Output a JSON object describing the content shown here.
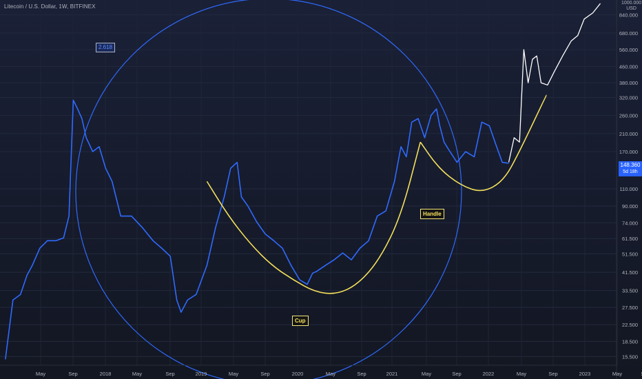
{
  "header": {
    "symbol_line": "Litecoin / U.S. Dollar, 1W, BITFINEX"
  },
  "axis": {
    "currency_top": "1000.000",
    "currency": "USD"
  },
  "price_tag": {
    "price": "148.360",
    "countdown": "5d 18h"
  },
  "annotations": {
    "fib": "2.618",
    "cup": "Cup",
    "handle": "Handle"
  },
  "colors": {
    "background": "#131722",
    "price_line": "#2f6bff",
    "projection_line": "#ffffff",
    "pattern_curve": "#f5e15c",
    "fib_circle": "#2f6bff",
    "label_text": "#b2b5be"
  },
  "chart_data": {
    "type": "line",
    "title": "Litecoin / U.S. Dollar, 1W, BITFINEX",
    "y_scale": "log",
    "ylim": [
      14,
      1000
    ],
    "y_ticks": [
      "15.500",
      "18.500",
      "22.500",
      "27.500",
      "33.500",
      "41.500",
      "51.500",
      "61.500",
      "74.000",
      "90.000",
      "110.000",
      "170.000",
      "210.000",
      "260.000",
      "320.000",
      "380.000",
      "460.000",
      "560.000",
      "680.000",
      "840.000"
    ],
    "x_ticks": [
      "May",
      "Sep",
      "2018",
      "May",
      "Sep",
      "2019",
      "May",
      "Sep",
      "2020",
      "May",
      "Sep",
      "2021",
      "May",
      "Sep",
      "2022",
      "May",
      "Sep",
      "2023",
      "May",
      "Se"
    ],
    "grid": true,
    "series": [
      {
        "style": "price",
        "x": [
          2017.33,
          2017.4,
          2017.47,
          2017.53,
          2017.58,
          2017.65,
          2017.72,
          2017.8,
          2017.87,
          2017.92,
          2017.96,
          2018.0,
          2018.04,
          2018.08,
          2018.14,
          2018.2,
          2018.26,
          2018.32,
          2018.4,
          2018.5,
          2018.6,
          2018.7,
          2018.78,
          2018.86,
          2018.92,
          2018.96,
          2019.02,
          2019.1,
          2019.2,
          2019.28,
          2019.36,
          2019.42,
          2019.48,
          2019.52,
          2019.58,
          2019.66,
          2019.74,
          2019.82,
          2019.9,
          2019.98,
          2020.06,
          2020.13,
          2020.18,
          2020.22,
          2020.3,
          2020.38,
          2020.46,
          2020.54,
          2020.62,
          2020.7,
          2020.78,
          2020.86,
          2020.94,
          2021.0,
          2021.05,
          2021.1,
          2021.16,
          2021.22,
          2021.28,
          2021.33,
          2021.36,
          2021.4,
          2021.44,
          2021.52,
          2021.6,
          2021.68,
          2021.75,
          2021.82,
          2021.88,
          2021.94,
          2022.0
        ],
        "y": [
          15,
          30,
          32,
          40,
          45,
          55,
          60,
          60,
          62,
          80,
          310,
          280,
          250,
          200,
          170,
          180,
          140,
          120,
          80,
          80,
          70,
          60,
          55,
          50,
          30,
          26,
          30,
          32,
          45,
          70,
          100,
          140,
          150,
          100,
          90,
          75,
          65,
          60,
          55,
          45,
          38,
          36,
          41,
          42,
          45,
          48,
          52,
          48,
          55,
          60,
          80,
          85,
          120,
          180,
          160,
          240,
          250,
          200,
          260,
          280,
          230,
          190,
          175,
          150,
          170,
          160,
          240,
          230,
          185,
          150,
          148.36
        ]
      },
      {
        "style": "projection",
        "x": [
          2022.0,
          2022.05,
          2022.1,
          2022.14,
          2022.18,
          2022.22,
          2022.26,
          2022.3,
          2022.36,
          2022.42,
          2022.5,
          2022.58,
          2022.64,
          2022.7,
          2022.78,
          2022.85
        ],
        "y": [
          150,
          200,
          190,
          560,
          380,
          500,
          520,
          380,
          370,
          430,
          520,
          620,
          660,
          800,
          860,
          960
        ]
      },
      {
        "style": "cup",
        "x": [
          2019.2,
          2019.4,
          2019.6,
          2019.8,
          2020.0,
          2020.2,
          2020.4,
          2020.6,
          2020.8,
          2021.0,
          2021.18
        ],
        "y": [
          120,
          80,
          58,
          45,
          38,
          33,
          32,
          36,
          48,
          80,
          190
        ]
      },
      {
        "style": "handle",
        "x": [
          2021.18,
          2021.35,
          2021.55,
          2021.75,
          2021.95,
          2022.1,
          2022.35
        ],
        "y": [
          190,
          140,
          115,
          105,
          120,
          170,
          330
        ]
      }
    ]
  }
}
